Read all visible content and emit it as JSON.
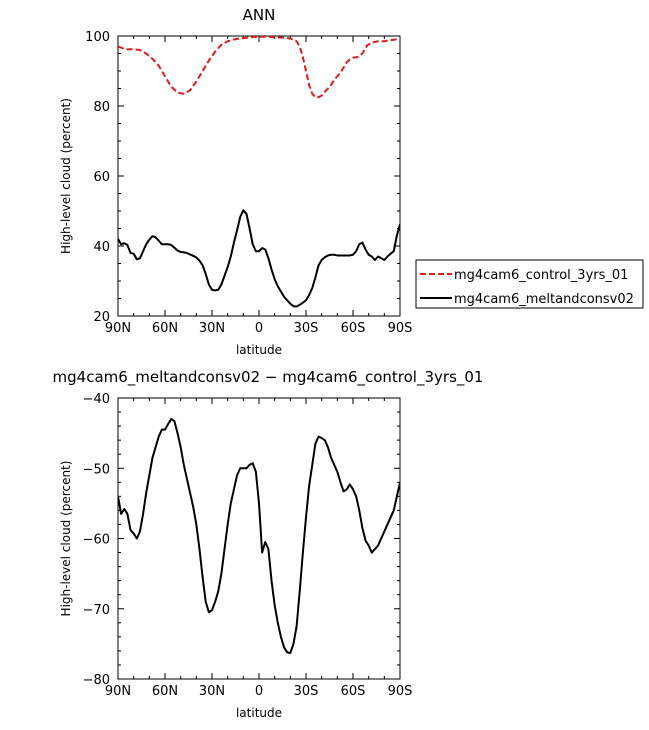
{
  "chart_data": [
    {
      "type": "line",
      "title": "ANN",
      "xlabel": "latitude",
      "ylabel": "High-level cloud (percent)",
      "xlim": [
        90,
        -90
      ],
      "ylim": [
        20,
        100
      ],
      "xticks": [
        90,
        60,
        30,
        0,
        -30,
        -60,
        -90
      ],
      "xtick_labels": [
        "90N",
        "60N",
        "30N",
        "0",
        "30S",
        "60S",
        "90S"
      ],
      "yticks": [
        20,
        40,
        60,
        80,
        100
      ],
      "ytick_labels": [
        "20",
        "40",
        "60",
        "80",
        "100"
      ],
      "legend_position": "right",
      "series": [
        {
          "name": "mg4cam6_control_3yrs_01",
          "color": "#e01b1b",
          "dash": "dashed",
          "x": [
            90,
            87,
            84,
            80,
            76,
            72,
            68,
            64,
            60,
            56,
            52,
            48,
            44,
            40,
            36,
            32,
            28,
            24,
            20,
            16,
            12,
            8,
            4,
            0,
            -4,
            -8,
            -12,
            -16,
            -20,
            -24,
            -26,
            -28,
            -30,
            -32,
            -34,
            -36,
            -38,
            -40,
            -42,
            -44,
            -46,
            -48,
            -50,
            -52,
            -54,
            -56,
            -58,
            -60,
            -63,
            -66,
            -69,
            -72,
            -74,
            -76,
            -78,
            -80,
            -84,
            -87,
            -90
          ],
          "y": [
            97,
            96.5,
            96.2,
            96.2,
            96,
            95,
            93.5,
            91.5,
            88.5,
            85.5,
            83.8,
            83.5,
            84.5,
            87,
            90,
            93,
            95.5,
            97.5,
            98.5,
            99,
            99.3,
            99.5,
            99.7,
            99.8,
            99.8,
            99.7,
            99.6,
            99.5,
            99.3,
            98.5,
            97,
            94,
            90,
            86,
            83.5,
            82.5,
            82.5,
            83,
            84,
            85,
            86,
            87.5,
            88.5,
            89.5,
            91,
            92.5,
            93.3,
            93.8,
            94,
            95,
            97.3,
            98.2,
            98.3,
            98.5,
            98.5,
            98.5,
            98.8,
            99,
            99.2
          ]
        },
        {
          "name": "mg4cam6_meltandconsv02",
          "color": "#000000",
          "dash": "solid",
          "x": [
            90,
            88,
            86,
            84,
            82,
            80,
            78,
            76,
            74,
            72,
            70,
            68,
            66,
            64,
            62,
            60,
            58,
            56,
            54,
            52,
            50,
            48,
            46,
            44,
            42,
            40,
            38,
            36,
            34,
            32,
            30,
            28,
            26,
            24,
            22,
            20,
            18,
            16,
            14,
            12,
            10,
            8,
            6,
            4,
            2,
            0,
            -2,
            -4,
            -6,
            -8,
            -10,
            -12,
            -14,
            -16,
            -18,
            -20,
            -22,
            -24,
            -26,
            -28,
            -30,
            -32,
            -34,
            -36,
            -38,
            -40,
            -42,
            -44,
            -46,
            -48,
            -50,
            -52,
            -54,
            -56,
            -58,
            -60,
            -62,
            -64,
            -66,
            -68,
            -70,
            -72,
            -74,
            -76,
            -78,
            -80,
            -82,
            -84,
            -86,
            -88,
            -90
          ],
          "y": [
            42,
            40.5,
            40.8,
            40.3,
            38,
            37.8,
            36.2,
            36.5,
            38.5,
            40.5,
            41.8,
            42.8,
            42.5,
            41.5,
            40.5,
            40.5,
            40.5,
            40.3,
            39.5,
            38.7,
            38.3,
            38.2,
            38,
            37.6,
            37.2,
            36.7,
            35.8,
            34.5,
            32,
            29,
            27.5,
            27.3,
            27.5,
            29,
            31.5,
            34,
            37,
            41,
            44.5,
            48.3,
            50.2,
            49.2,
            45,
            40.5,
            38.5,
            38.5,
            39.4,
            39,
            36.5,
            33.3,
            30.5,
            28.5,
            27,
            25.5,
            24.5,
            23.5,
            22.8,
            22.7,
            23.2,
            23.8,
            24.5,
            26,
            28,
            31,
            34.5,
            36,
            36.8,
            37.3,
            37.5,
            37.5,
            37.3,
            37.3,
            37.3,
            37.3,
            37.3,
            37.5,
            38.5,
            40.5,
            41,
            39,
            37.5,
            37,
            36,
            37,
            36.5,
            36,
            37,
            37.8,
            38.5,
            43,
            46.2
          ]
        }
      ]
    },
    {
      "type": "line",
      "title": "mg4cam6_meltandconsv02 − mg4cam6_control_3yrs_01",
      "xlabel": "latitude",
      "ylabel": "High-level cloud (percent)",
      "xlim": [
        90,
        -90
      ],
      "ylim": [
        -80,
        -40
      ],
      "xticks": [
        90,
        60,
        30,
        0,
        -30,
        -60,
        -90
      ],
      "xtick_labels": [
        "90N",
        "60N",
        "30N",
        "0",
        "30S",
        "60S",
        "90S"
      ],
      "yticks": [
        -80,
        -70,
        -60,
        -50,
        -40
      ],
      "ytick_labels": [
        "−80",
        "−70",
        "−60",
        "−50",
        "−40"
      ],
      "series": [
        {
          "color": "#000000",
          "dash": "solid",
          "x": [
            90,
            88,
            86,
            84,
            82,
            80,
            78,
            76,
            74,
            72,
            70,
            68,
            66,
            64,
            62,
            60,
            58,
            56,
            54,
            52,
            50,
            48,
            46,
            44,
            42,
            40,
            38,
            36,
            34,
            32,
            30,
            28,
            26,
            24,
            22,
            20,
            18,
            16,
            14,
            12,
            10,
            8,
            6,
            4,
            2,
            0,
            -2,
            -4,
            -6,
            -8,
            -10,
            -12,
            -14,
            -16,
            -18,
            -20,
            -22,
            -24,
            -26,
            -28,
            -30,
            -32,
            -34,
            -36,
            -38,
            -40,
            -42,
            -44,
            -46,
            -48,
            -50,
            -52,
            -54,
            -56,
            -58,
            -60,
            -62,
            -64,
            -66,
            -68,
            -70,
            -72,
            -74,
            -76,
            -78,
            -80,
            -82,
            -84,
            -86,
            -88,
            -90
          ],
          "y": [
            -54,
            -56.5,
            -55.8,
            -56.5,
            -58.8,
            -59.3,
            -60,
            -59,
            -56.5,
            -53.5,
            -51,
            -48.5,
            -47,
            -45.5,
            -44.5,
            -44.5,
            -43.7,
            -43,
            -43.3,
            -45,
            -47,
            -49.5,
            -51.5,
            -53.5,
            -55.5,
            -58,
            -61.5,
            -65.5,
            -69,
            -70.5,
            -70.2,
            -69,
            -67.5,
            -65,
            -61.5,
            -58,
            -55,
            -53,
            -51,
            -50,
            -50,
            -50,
            -49.5,
            -49.3,
            -50.5,
            -55,
            -62,
            -60.5,
            -61.5,
            -66,
            -69.5,
            -72,
            -74,
            -75.5,
            -76.2,
            -76.3,
            -75,
            -72.5,
            -67.5,
            -62,
            -57,
            -52.5,
            -49.5,
            -46.5,
            -45.5,
            -45.7,
            -46,
            -47,
            -48.5,
            -49.5,
            -50.5,
            -52,
            -53.3,
            -53,
            -52.3,
            -53,
            -54,
            -56,
            -58.5,
            -60.3,
            -61,
            -62,
            -61.5,
            -61,
            -60,
            -59,
            -58,
            -57,
            -56,
            -54,
            -52
          ]
        }
      ]
    }
  ]
}
